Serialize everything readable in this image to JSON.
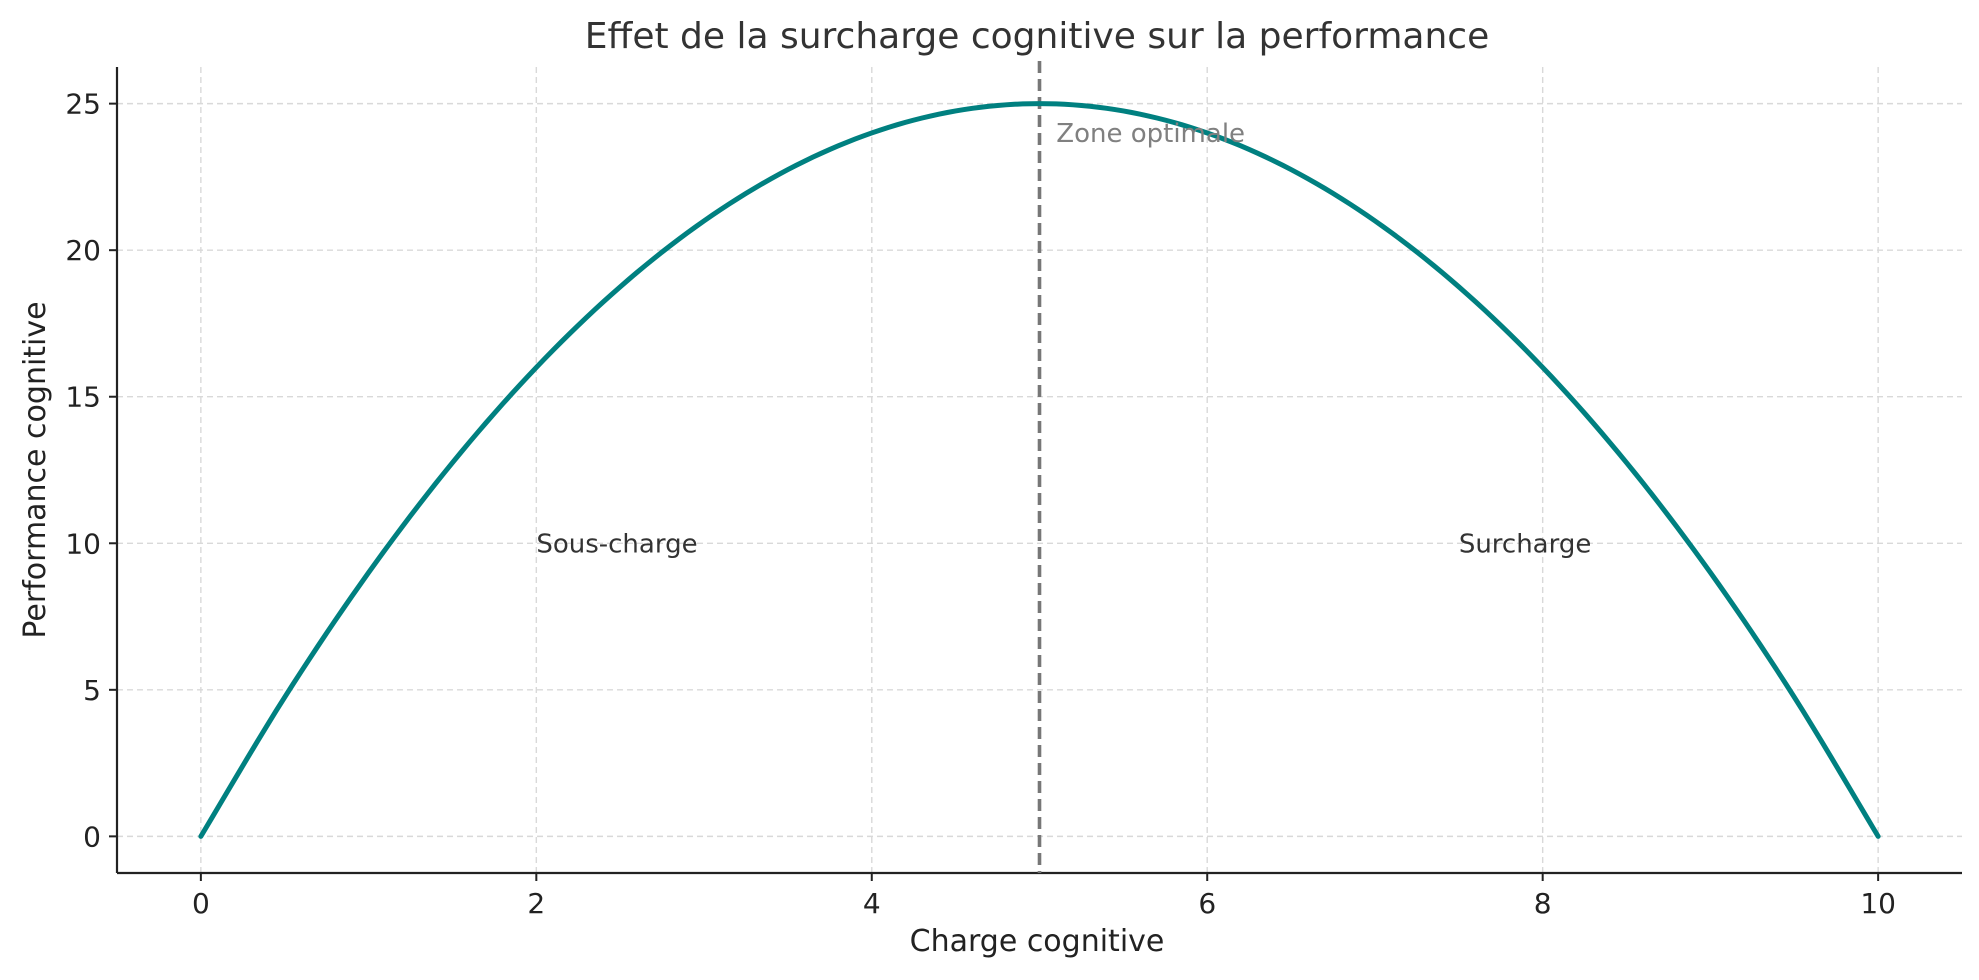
{
  "chart_data": {
    "type": "line",
    "title": "Effet de la surcharge cognitive sur la performance",
    "xlabel": "Charge cognitive",
    "ylabel": "Performance cognitive",
    "xlim": [
      -0.5,
      10.5
    ],
    "ylim": [
      -1.25,
      26.25
    ],
    "x_ticks": [
      0,
      2,
      4,
      6,
      8,
      10
    ],
    "y_ticks": [
      0,
      5,
      10,
      15,
      20,
      25
    ],
    "grid": true,
    "series": [
      {
        "color": "#008080",
        "x": [
          0,
          0.5,
          1,
          1.5,
          2,
          2.5,
          3,
          3.5,
          4,
          4.5,
          5,
          5.5,
          6,
          6.5,
          7,
          7.5,
          8,
          8.5,
          9,
          9.5,
          10
        ],
        "y": [
          0,
          4.75,
          9,
          12.75,
          16,
          18.75,
          21,
          22.75,
          24,
          24.75,
          25,
          24.75,
          24,
          22.75,
          21,
          18.75,
          16,
          12.75,
          9,
          4.75,
          0
        ]
      }
    ],
    "vline": {
      "x": 5,
      "color": "#777777",
      "style": "dashed"
    },
    "annotations": [
      {
        "text": "Zone optimale",
        "x": 5.1,
        "y": 24
      },
      {
        "text": "Sous-charge",
        "x": 2,
        "y": 10
      },
      {
        "text": "Surcharge",
        "x": 7.5,
        "y": 10
      }
    ]
  }
}
